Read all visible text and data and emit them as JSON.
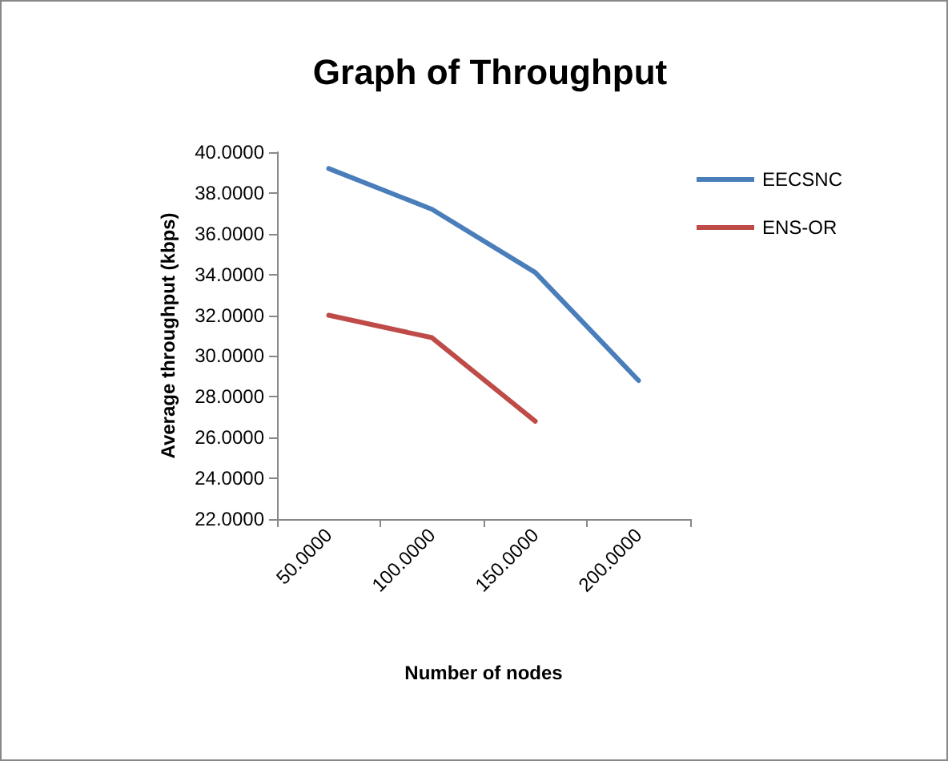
{
  "chart_data": {
    "type": "line",
    "title": "Graph of Throughput",
    "xlabel": "Number of nodes",
    "ylabel": "Average throughput (kbps)",
    "categories": [
      "50.0000",
      "100.0000",
      "150.0000",
      "200.0000"
    ],
    "series": [
      {
        "name": "EECSNC",
        "color": "#4a7ebb",
        "values": [
          39.2,
          37.2,
          34.1,
          28.8
        ]
      },
      {
        "name": "ENS-OR",
        "color": "#be4b48",
        "values": [
          32.0,
          30.9,
          26.8,
          null
        ]
      }
    ],
    "ylim": [
      22,
      40
    ],
    "yticks": [
      {
        "value": 22,
        "label": "22.0000"
      },
      {
        "value": 24,
        "label": "24.0000"
      },
      {
        "value": 26,
        "label": "26.0000"
      },
      {
        "value": 28,
        "label": "28.0000"
      },
      {
        "value": 30,
        "label": "30.0000"
      },
      {
        "value": 32,
        "label": "32.0000"
      },
      {
        "value": 34,
        "label": "34.0000"
      },
      {
        "value": 36,
        "label": "36.0000"
      },
      {
        "value": 38,
        "label": "38.0000"
      },
      {
        "value": 40,
        "label": "40.0000"
      }
    ],
    "grid": false,
    "legend": "right",
    "marker": "none",
    "line_style": "solid"
  }
}
